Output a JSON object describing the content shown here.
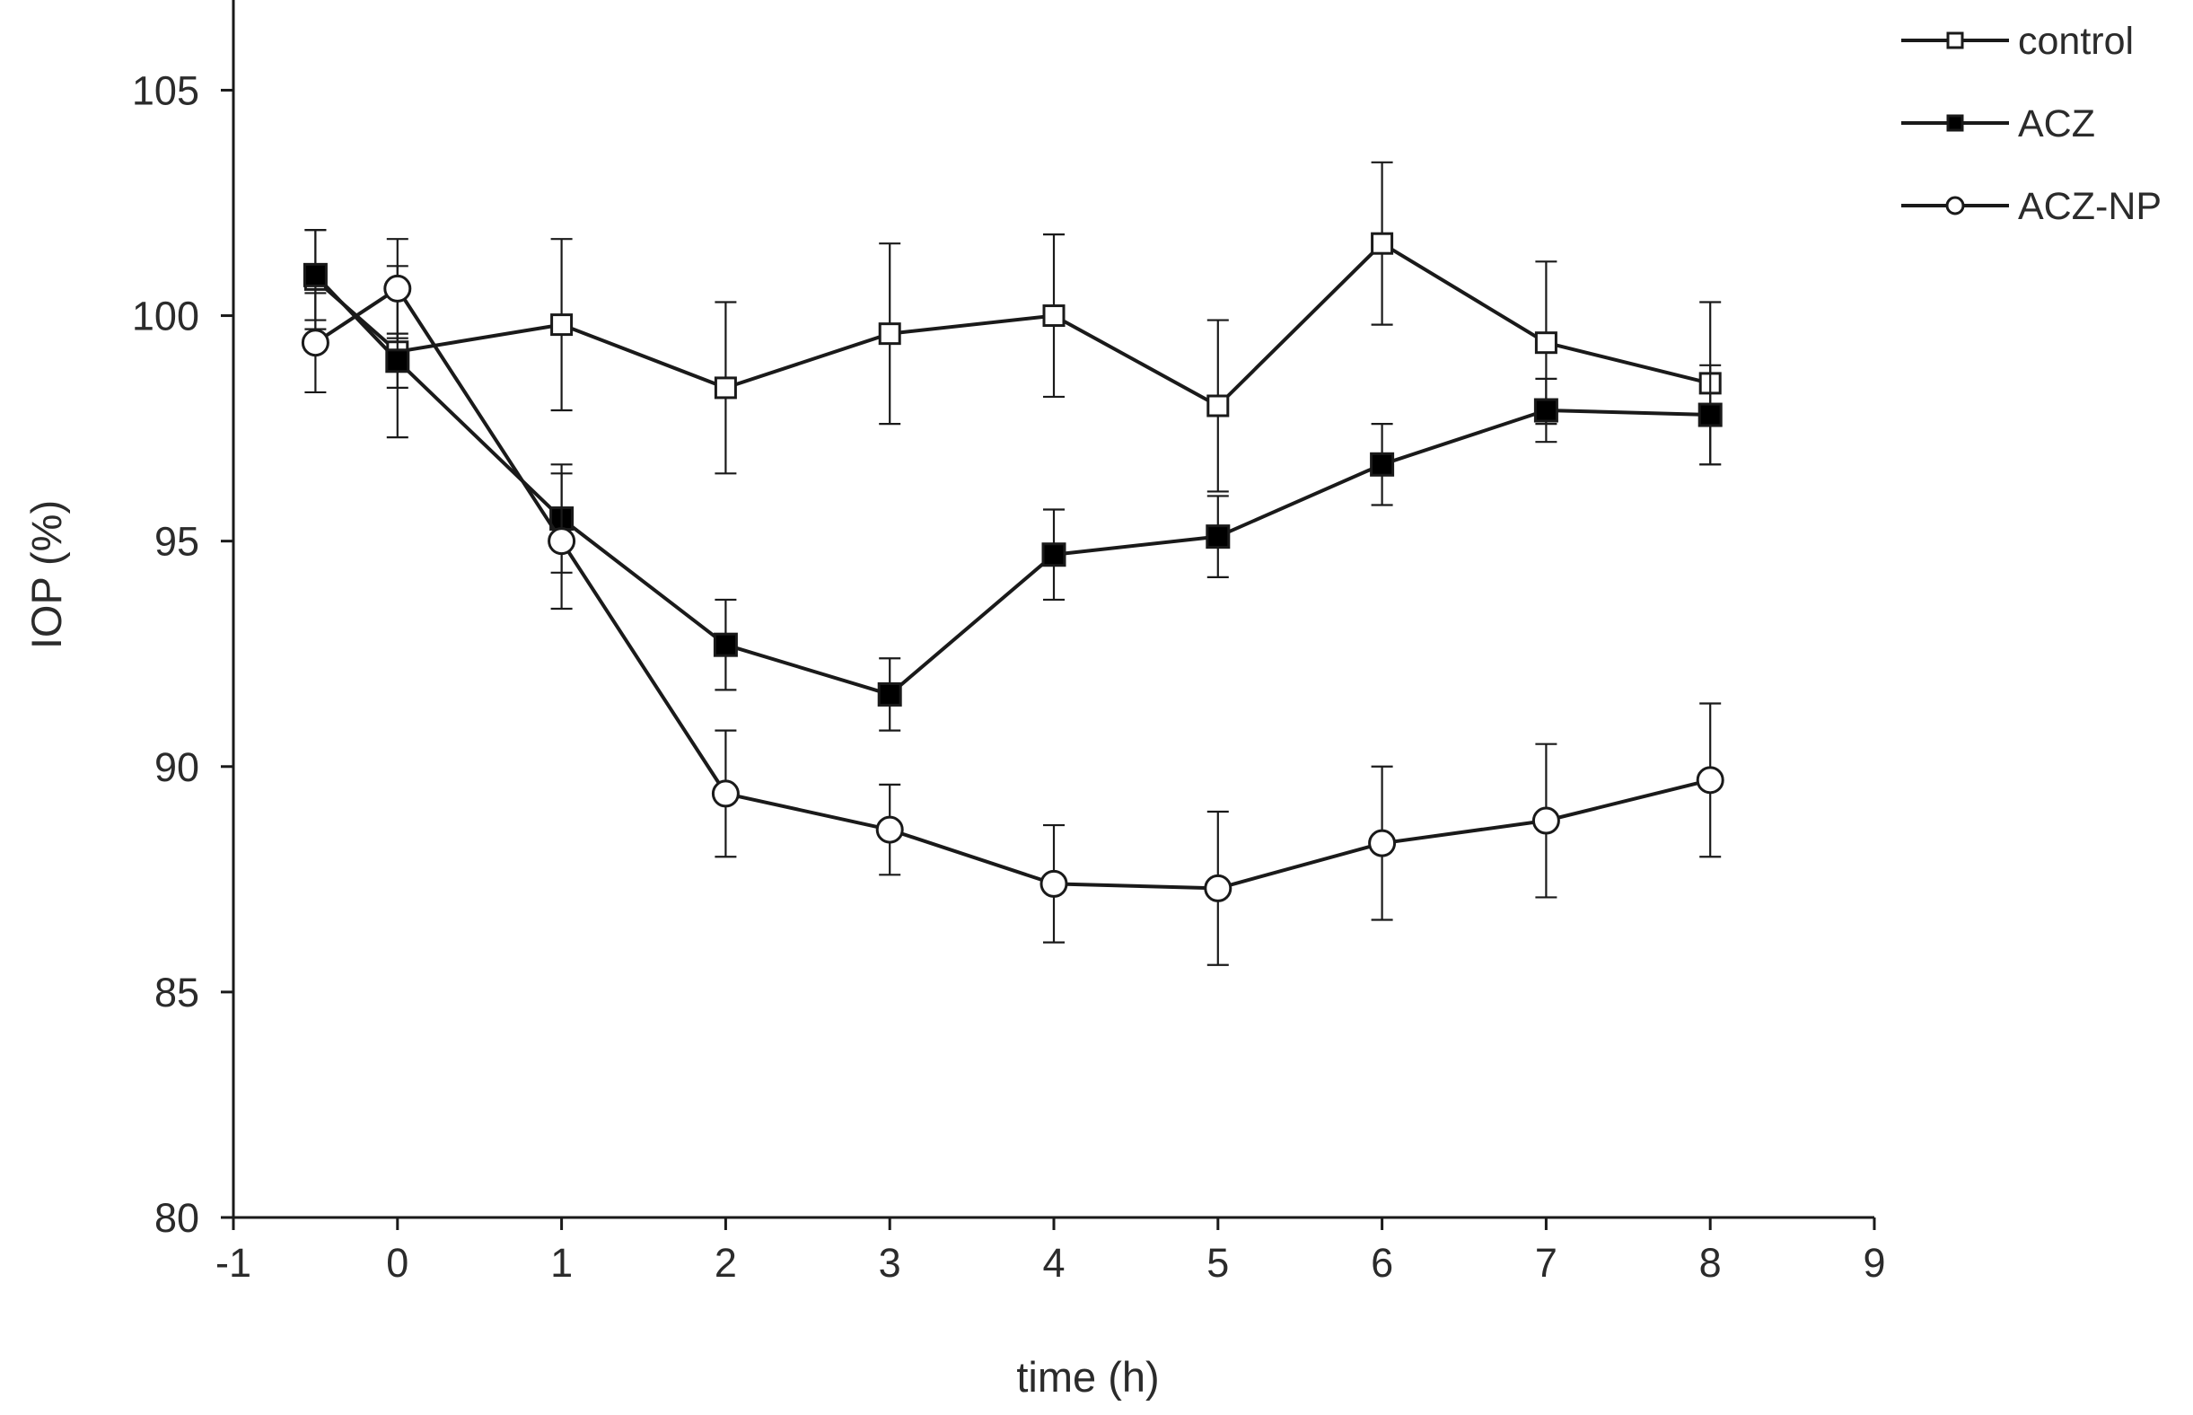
{
  "chart_data": {
    "type": "line",
    "title": "",
    "xlabel": "time (h)",
    "ylabel": "IOP (%)",
    "xlim": [
      -1,
      9
    ],
    "ylim": [
      80,
      107
    ],
    "xticks": [
      -1,
      0,
      1,
      2,
      3,
      4,
      5,
      6,
      7,
      8,
      9
    ],
    "yticks": [
      80,
      85,
      90,
      95,
      100,
      105
    ],
    "grid": false,
    "legend_position": "top-right",
    "colors": {
      "line": "#1a1a1a",
      "open_fill": "#ffffff",
      "filled": "#000000"
    },
    "series": [
      {
        "name": "control",
        "marker": "square-open",
        "x": [
          -0.5,
          0,
          1,
          2,
          3,
          4,
          5,
          6,
          7,
          8
        ],
        "y": [
          100.8,
          99.2,
          99.8,
          98.4,
          99.6,
          100.0,
          98.0,
          101.6,
          99.4,
          98.5
        ],
        "err": [
          1.1,
          1.9,
          1.9,
          1.9,
          2.0,
          1.8,
          1.9,
          1.8,
          1.8,
          1.8
        ]
      },
      {
        "name": "ACZ",
        "marker": "square-filled",
        "x": [
          -0.5,
          0,
          1,
          2,
          3,
          4,
          5,
          6,
          7,
          8
        ],
        "y": [
          100.9,
          99.0,
          95.5,
          92.7,
          91.6,
          94.7,
          95.1,
          96.7,
          97.9,
          97.8
        ],
        "err": [
          1.0,
          0.6,
          1.2,
          1.0,
          0.8,
          1.0,
          0.9,
          0.9,
          0.7,
          1.1
        ]
      },
      {
        "name": "ACZ-NP",
        "marker": "circle-open",
        "x": [
          -0.5,
          0,
          1,
          2,
          3,
          4,
          5,
          6,
          7,
          8
        ],
        "y": [
          99.4,
          100.6,
          95.0,
          89.4,
          88.6,
          87.4,
          87.3,
          88.3,
          88.8,
          89.7
        ],
        "err": [
          1.1,
          1.1,
          1.5,
          1.4,
          1.0,
          1.3,
          1.7,
          1.7,
          1.7,
          1.7
        ]
      }
    ]
  }
}
